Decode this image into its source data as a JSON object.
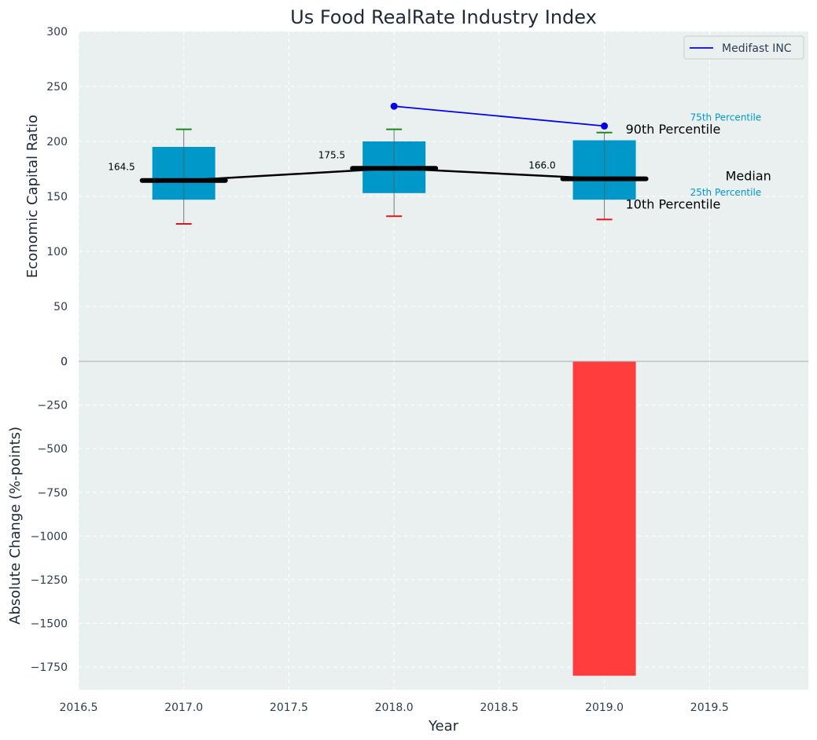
{
  "chart_data": {
    "title": "Us Food RealRate Industry Index",
    "xlabel": "Year",
    "xlim": [
      2016.5,
      2019.97
    ],
    "xticks": [
      "2016.5",
      "2017.0",
      "2017.5",
      "2018.0",
      "2018.5",
      "2019.0",
      "2019.5"
    ],
    "grid": true,
    "legend_position": "top-right",
    "top_panel": {
      "type": "box",
      "ylabel": "Economic Capital Ratio",
      "ylim": [
        0,
        300
      ],
      "yticks": [
        "0",
        "50",
        "100",
        "150",
        "200",
        "250",
        "300"
      ],
      "box_color": "#0098c8",
      "boxes": [
        {
          "x": 2017,
          "p10": 125,
          "p25": 147,
          "median": 164.5,
          "p75": 195,
          "p90": 211,
          "median_label": "164.5"
        },
        {
          "x": 2018,
          "p10": 132,
          "p25": 153,
          "median": 175.5,
          "p75": 200,
          "p90": 211,
          "median_label": "175.5"
        },
        {
          "x": 2019,
          "p10": 129,
          "p25": 147,
          "median": 166.0,
          "p75": 201,
          "p90": 208,
          "median_label": "166.0"
        }
      ],
      "series": [
        {
          "name": "Medifast INC",
          "color": "#0000ee",
          "x": [
            2018,
            2019
          ],
          "y": [
            232,
            214
          ]
        }
      ],
      "annotations": {
        "p90": "90th Percentile",
        "p75": "75th Percentile",
        "median": "Median",
        "p25": "25th Percentile",
        "p10": "10th Percentile"
      }
    },
    "bottom_panel": {
      "type": "bar",
      "ylabel": "Absolute Change (%-points)",
      "ylim": [
        -1880,
        0
      ],
      "yticks": [
        "0",
        "−250",
        "−500",
        "−750",
        "−1000",
        "−1250",
        "−1500",
        "−1750"
      ],
      "bar_color": "#ff3d3d",
      "bars": [
        {
          "x": 2019,
          "value": -1800
        }
      ]
    }
  }
}
